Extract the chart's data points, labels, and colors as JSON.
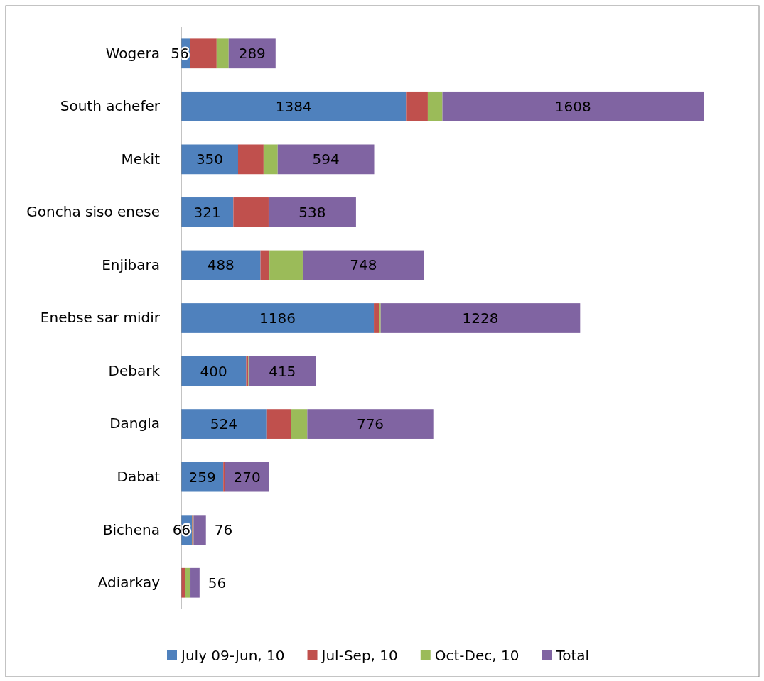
{
  "chart_data": {
    "type": "bar",
    "orientation": "horizontal",
    "stacked": true,
    "legend": "bottom",
    "categories": [
      "Wogera",
      "South achefer",
      "Mekit",
      "Goncha siso enese",
      "Enjibara",
      "Enebse sar midir",
      "Debark",
      "Dangla",
      "Dabat",
      "Bichena",
      "Adiarkay"
    ],
    "series": [
      {
        "name": "July 09-Jun, 10",
        "color": "#4f81bd",
        "values": [
          56,
          1384,
          350,
          321,
          488,
          1186,
          400,
          524,
          259,
          66,
          0
        ],
        "value_labels": [
          "56",
          "1384",
          "350",
          "321",
          "488",
          "1186",
          "400",
          "524",
          "259",
          "66",
          null
        ]
      },
      {
        "name": "Jul-Sep, 10",
        "color": "#c0504d",
        "values": [
          162,
          134,
          157,
          217,
          55,
          31,
          12,
          152,
          9,
          3,
          22
        ]
      },
      {
        "name": "Oct-Dec, 10",
        "color": "#9bbb59",
        "values": [
          74,
          90,
          87,
          0,
          205,
          11,
          3,
          100,
          2,
          7,
          35
        ]
      },
      {
        "name": "Total",
        "color": "#8064a2",
        "values": [
          289,
          1608,
          594,
          538,
          748,
          1228,
          415,
          776,
          270,
          76,
          56
        ],
        "value_labels": [
          "289",
          "1608",
          "594",
          "538",
          "748",
          "1228",
          "415",
          "776",
          "270",
          "76",
          "56"
        ]
      }
    ]
  }
}
